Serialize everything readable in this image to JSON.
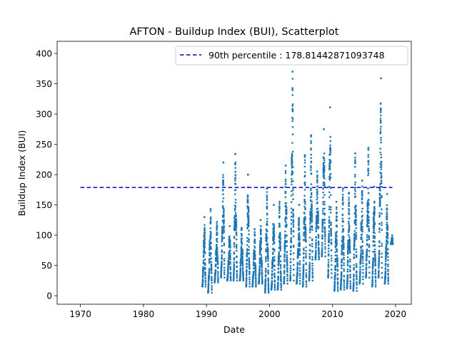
{
  "chart_data": {
    "type": "scatter",
    "title": "AFTON - Buildup Index (BUI), Scatterplot",
    "xlabel": "Date",
    "ylabel": "Buildup Index (BUI)",
    "xlim": [
      1966.3,
      2022.5
    ],
    "ylim": [
      -14,
      420
    ],
    "x_ticks": [
      1970,
      1980,
      1990,
      2000,
      2010,
      2020
    ],
    "y_ticks": [
      0,
      50,
      100,
      150,
      200,
      250,
      300,
      350,
      400
    ],
    "legend_position": "top-right",
    "reference_line": {
      "label": "90th percentile : 178.81442871093748",
      "value": 178.81442871093748,
      "x_range": [
        1970,
        2019.5
      ],
      "style": "dashed",
      "color": "#0000cc"
    },
    "series_color": "#1f77b4",
    "seasons": [
      {
        "year": 1989,
        "start": 1989.35,
        "end": 1989.85,
        "min": 15,
        "max": 130
      },
      {
        "year": 1990,
        "start": 1990.25,
        "end": 1990.85,
        "min": 5,
        "max": 143
      },
      {
        "year": 1991,
        "start": 1991.3,
        "end": 1991.85,
        "min": 22,
        "max": 122
      },
      {
        "year": 1992,
        "start": 1992.3,
        "end": 1992.85,
        "min": 30,
        "max": 220
      },
      {
        "year": 1993,
        "start": 1993.3,
        "end": 1993.85,
        "min": 25,
        "max": 115
      },
      {
        "year": 1994,
        "start": 1994.3,
        "end": 1994.85,
        "min": 25,
        "max": 234
      },
      {
        "year": 1995,
        "start": 1995.3,
        "end": 1995.85,
        "min": 25,
        "max": 112
      },
      {
        "year": 1996,
        "start": 1996.3,
        "end": 1996.85,
        "min": 15,
        "max": 200
      },
      {
        "year": 1997,
        "start": 1997.3,
        "end": 1997.85,
        "min": 15,
        "max": 110
      },
      {
        "year": 1998,
        "start": 1998.3,
        "end": 1998.85,
        "min": 20,
        "max": 125
      },
      {
        "year": 1999,
        "start": 1999.3,
        "end": 1999.85,
        "min": 5,
        "max": 177
      },
      {
        "year": 2000,
        "start": 2000.3,
        "end": 2000.85,
        "min": 10,
        "max": 150
      },
      {
        "year": 2001,
        "start": 2001.3,
        "end": 2001.85,
        "min": 10,
        "max": 155
      },
      {
        "year": 2002,
        "start": 2002.3,
        "end": 2002.85,
        "min": 20,
        "max": 215
      },
      {
        "year": 2003,
        "start": 2003.3,
        "end": 2003.85,
        "min": 25,
        "max": 370
      },
      {
        "year": 2004,
        "start": 2004.3,
        "end": 2004.85,
        "min": 20,
        "max": 150
      },
      {
        "year": 2005,
        "start": 2005.3,
        "end": 2005.85,
        "min": 15,
        "max": 232
      },
      {
        "year": 2006,
        "start": 2006.3,
        "end": 2006.85,
        "min": 25,
        "max": 265
      },
      {
        "year": 2007,
        "start": 2007.3,
        "end": 2007.85,
        "min": 60,
        "max": 205
      },
      {
        "year": 2008,
        "start": 2008.3,
        "end": 2008.85,
        "min": 65,
        "max": 275
      },
      {
        "year": 2009,
        "start": 2009.3,
        "end": 2009.85,
        "min": 30,
        "max": 311
      },
      {
        "year": 2010,
        "start": 2010.3,
        "end": 2010.85,
        "min": 8,
        "max": 155
      },
      {
        "year": 2011,
        "start": 2011.3,
        "end": 2011.85,
        "min": 10,
        "max": 177
      },
      {
        "year": 2012,
        "start": 2012.3,
        "end": 2012.85,
        "min": 12,
        "max": 170
      },
      {
        "year": 2013,
        "start": 2013.3,
        "end": 2013.85,
        "min": 8,
        "max": 235
      },
      {
        "year": 2014,
        "start": 2014.3,
        "end": 2014.85,
        "min": 20,
        "max": 190
      },
      {
        "year": 2015,
        "start": 2015.3,
        "end": 2015.85,
        "min": 30,
        "max": 244
      },
      {
        "year": 2016,
        "start": 2016.3,
        "end": 2016.85,
        "min": 15,
        "max": 180
      },
      {
        "year": 2017,
        "start": 2017.3,
        "end": 2017.85,
        "min": 30,
        "max": 359
      },
      {
        "year": 2018,
        "start": 2018.3,
        "end": 2018.85,
        "min": 20,
        "max": 168
      },
      {
        "year": 2019,
        "start": 2019.25,
        "end": 2019.55,
        "min": 85,
        "max": 100
      }
    ]
  }
}
